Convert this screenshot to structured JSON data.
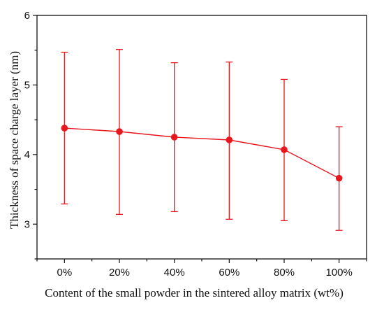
{
  "chart_data": {
    "type": "line",
    "title": "",
    "xlabel": "Content of the small powder in the sintered alloy matrix  (wt%)",
    "ylabel": "Thickness of space charge layer (nm)",
    "categories": [
      "0%",
      "20%",
      "40%",
      "60%",
      "80%",
      "100%"
    ],
    "series": [
      {
        "values": [
          4.38,
          4.33,
          4.25,
          4.21,
          4.07,
          3.66
        ],
        "error_upper": [
          5.47,
          5.51,
          5.32,
          5.33,
          5.08,
          4.4
        ],
        "error_lower": [
          3.29,
          3.14,
          3.18,
          3.07,
          3.05,
          2.91
        ],
        "color": "#e8161d"
      }
    ],
    "ylim": [
      2.5,
      6.0
    ],
    "yticks": [
      3,
      4,
      5,
      6
    ],
    "grid": false,
    "legend": "none"
  }
}
